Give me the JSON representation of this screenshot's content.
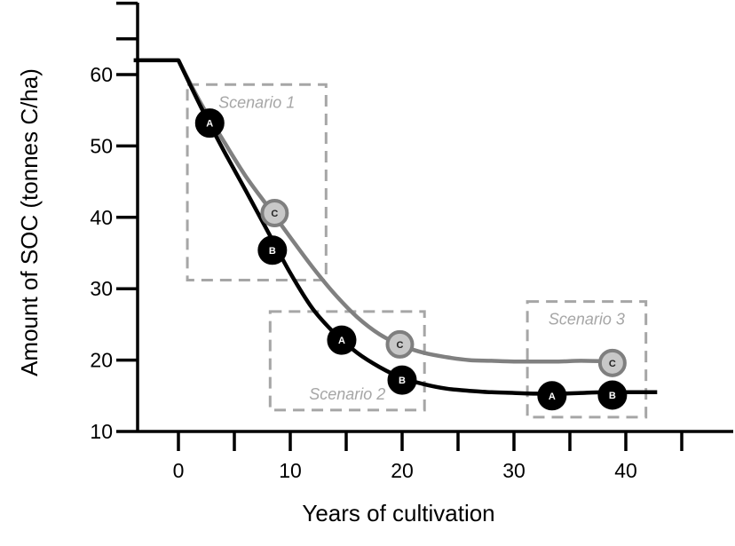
{
  "chart_data": {
    "type": "line",
    "xlabel": "Years of cultivation",
    "ylabel": "Amount of SOC (tonnes C/ha)",
    "xlim": [
      -4,
      50
    ],
    "ylim": [
      10,
      70
    ],
    "x_ticks": [
      0,
      10,
      20,
      30,
      40
    ],
    "x_tick_labels": [
      "0",
      "10",
      "20",
      "30",
      "40"
    ],
    "y_ticks": [
      10,
      20,
      30,
      40,
      50,
      60
    ],
    "y_tick_labels": [
      "10",
      "20",
      "30",
      "40",
      "50",
      "60"
    ],
    "grid": false,
    "series": [
      {
        "color": "#000000",
        "x": [
          -4,
          0,
          2,
          4,
          6,
          8,
          10,
          12,
          14,
          16,
          18,
          20,
          22,
          24,
          26,
          28,
          30,
          32,
          34,
          36,
          38,
          40,
          42.8
        ],
        "y": [
          62,
          62,
          55.5,
          49.5,
          43.8,
          38.0,
          32.2,
          27.2,
          23.7,
          21.0,
          19.0,
          17.5,
          16.6,
          16.0,
          15.7,
          15.5,
          15.4,
          15.3,
          15.3,
          15.4,
          15.5,
          15.5,
          15.5
        ]
      },
      {
        "color": "#808080",
        "x": [
          0,
          2,
          4,
          6,
          8,
          10,
          12,
          14,
          16,
          18,
          20,
          22,
          24,
          26,
          28,
          30,
          32,
          34,
          36,
          38.8
        ],
        "y": [
          62,
          56.0,
          50.8,
          45.8,
          41.5,
          37.2,
          33.0,
          29.2,
          26.0,
          23.6,
          22.0,
          21.0,
          20.4,
          20.0,
          19.9,
          19.8,
          19.8,
          19.8,
          19.9,
          19.8
        ]
      }
    ],
    "markers": [
      {
        "label": "A",
        "x": 2.8,
        "y": 53.2,
        "style": "black"
      },
      {
        "label": "B",
        "x": 8.4,
        "y": 35.4,
        "style": "black"
      },
      {
        "label": "C",
        "x": 8.6,
        "y": 40.6,
        "style": "gray"
      },
      {
        "label": "A",
        "x": 14.6,
        "y": 22.8,
        "style": "black"
      },
      {
        "label": "C",
        "x": 19.8,
        "y": 22.2,
        "style": "gray"
      },
      {
        "label": "B",
        "x": 20.0,
        "y": 17.2,
        "style": "black"
      },
      {
        "label": "A",
        "x": 33.4,
        "y": 15.0,
        "style": "black"
      },
      {
        "label": "B",
        "x": 38.8,
        "y": 15.1,
        "style": "black"
      },
      {
        "label": "C",
        "x": 38.8,
        "y": 19.6,
        "style": "gray"
      }
    ],
    "scenarios": [
      {
        "label": "Scenario 1",
        "x0": 0.8,
        "x1": 13.2,
        "y0": 31.2,
        "y1": 58.6,
        "label_pos": "top"
      },
      {
        "label": "Scenario 2",
        "x0": 8.2,
        "x1": 22.0,
        "y0": 13.0,
        "y1": 26.8,
        "label_pos": "bottom"
      },
      {
        "label": "Scenario 3",
        "x0": 31.2,
        "x1": 41.8,
        "y0": 12.0,
        "y1": 28.2,
        "label_pos": "top"
      }
    ]
  }
}
